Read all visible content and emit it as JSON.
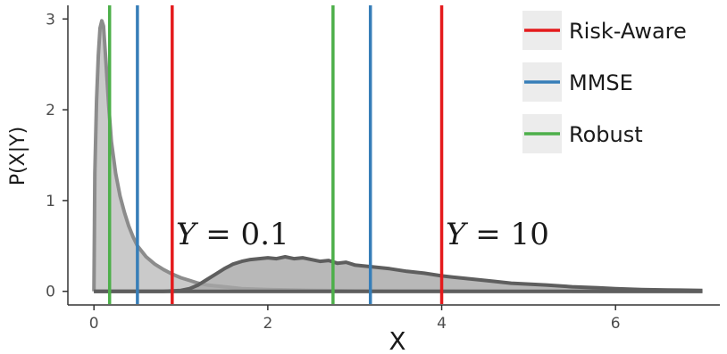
{
  "chart_data": {
    "type": "area",
    "title": "",
    "xlabel": "X",
    "ylabel": "P(X|Y)",
    "xlim": [
      -0.3,
      7.2
    ],
    "ylim": [
      -0.15,
      3.15
    ],
    "xticks": [
      0,
      2,
      4,
      6
    ],
    "yticks": [
      0,
      1,
      2,
      3
    ],
    "grid": false,
    "legend_position": "top-right",
    "densities": [
      {
        "annotation": "Y = 0.1",
        "fill": "#bdbdbd",
        "stroke": "#8c8c8c",
        "points": [
          [
            0.0,
            0.0
          ],
          [
            0.01,
            1.3
          ],
          [
            0.03,
            2.1
          ],
          [
            0.05,
            2.6
          ],
          [
            0.07,
            2.9
          ],
          [
            0.09,
            2.98
          ],
          [
            0.11,
            2.92
          ],
          [
            0.14,
            2.5
          ],
          [
            0.17,
            2.05
          ],
          [
            0.2,
            1.65
          ],
          [
            0.25,
            1.3
          ],
          [
            0.3,
            1.05
          ],
          [
            0.35,
            0.87
          ],
          [
            0.4,
            0.72
          ],
          [
            0.45,
            0.6
          ],
          [
            0.5,
            0.5
          ],
          [
            0.6,
            0.38
          ],
          [
            0.7,
            0.3
          ],
          [
            0.8,
            0.24
          ],
          [
            0.9,
            0.19
          ],
          [
            1.0,
            0.15
          ],
          [
            1.1,
            0.12
          ],
          [
            1.2,
            0.09
          ],
          [
            1.3,
            0.07
          ],
          [
            1.5,
            0.05
          ],
          [
            1.7,
            0.03
          ],
          [
            2.0,
            0.02
          ],
          [
            2.5,
            0.01
          ],
          [
            3.0,
            0.005
          ],
          [
            4.0,
            0.003
          ],
          [
            5.0,
            0.002
          ],
          [
            6.0,
            0.001
          ],
          [
            7.0,
            0.0
          ]
        ]
      },
      {
        "annotation": "Y = 10",
        "fill": "#a6a6a6",
        "stroke": "#5e5e5e",
        "points": [
          [
            0.0,
            0.0
          ],
          [
            0.8,
            0.0
          ],
          [
            1.0,
            0.01
          ],
          [
            1.1,
            0.03
          ],
          [
            1.2,
            0.07
          ],
          [
            1.3,
            0.13
          ],
          [
            1.4,
            0.19
          ],
          [
            1.5,
            0.25
          ],
          [
            1.6,
            0.3
          ],
          [
            1.7,
            0.33
          ],
          [
            1.8,
            0.35
          ],
          [
            1.9,
            0.36
          ],
          [
            2.0,
            0.37
          ],
          [
            2.1,
            0.36
          ],
          [
            2.2,
            0.38
          ],
          [
            2.3,
            0.36
          ],
          [
            2.4,
            0.37
          ],
          [
            2.5,
            0.35
          ],
          [
            2.6,
            0.33
          ],
          [
            2.7,
            0.34
          ],
          [
            2.8,
            0.31
          ],
          [
            2.9,
            0.32
          ],
          [
            3.0,
            0.29
          ],
          [
            3.2,
            0.27
          ],
          [
            3.4,
            0.25
          ],
          [
            3.6,
            0.22
          ],
          [
            3.8,
            0.2
          ],
          [
            4.0,
            0.17
          ],
          [
            4.2,
            0.15
          ],
          [
            4.4,
            0.13
          ],
          [
            4.6,
            0.11
          ],
          [
            4.8,
            0.09
          ],
          [
            5.0,
            0.08
          ],
          [
            5.2,
            0.07
          ],
          [
            5.5,
            0.05
          ],
          [
            5.8,
            0.04
          ],
          [
            6.0,
            0.03
          ],
          [
            6.3,
            0.02
          ],
          [
            6.6,
            0.015
          ],
          [
            7.0,
            0.01
          ]
        ]
      }
    ],
    "series": [
      {
        "name": "Risk-Aware",
        "color": "#e41a1c",
        "x": [
          0.9,
          4.0
        ]
      },
      {
        "name": "MMSE",
        "color": "#377eb8",
        "x": [
          0.5,
          3.18
        ]
      },
      {
        "name": "Robust",
        "color": "#4daf4a",
        "x": [
          0.18,
          2.75
        ]
      }
    ]
  }
}
